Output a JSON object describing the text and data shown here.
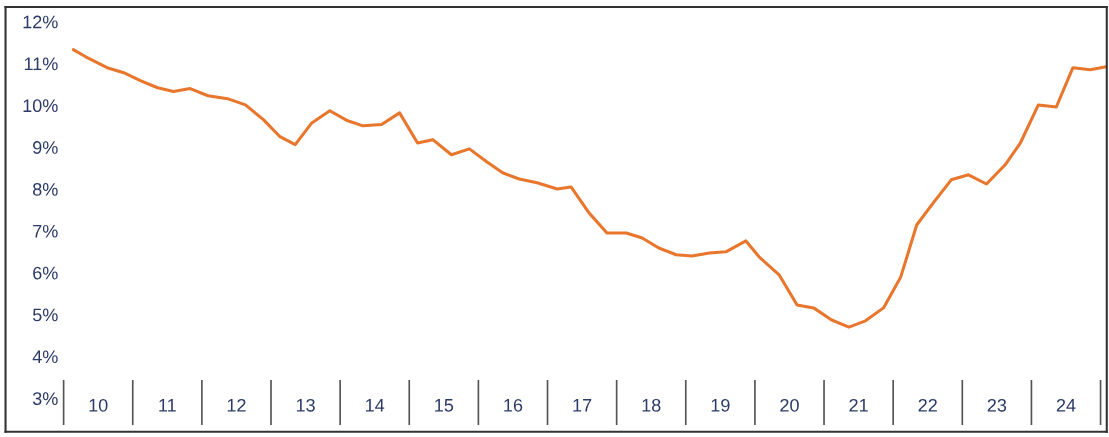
{
  "chart_data": {
    "type": "line",
    "x": [
      9.64,
      9.82,
      10.13,
      10.37,
      10.61,
      10.86,
      11.09,
      11.33,
      11.59,
      11.87,
      12.13,
      12.39,
      12.63,
      12.85,
      13.09,
      13.35,
      13.61,
      13.83,
      14.1,
      14.36,
      14.62,
      14.84,
      15.11,
      15.37,
      15.62,
      15.85,
      16.09,
      16.35,
      16.64,
      16.84,
      17.1,
      17.36,
      17.64,
      17.87,
      18.11,
      18.36,
      18.59,
      18.84,
      19.08,
      19.37,
      19.56,
      19.85,
      20.11,
      20.35,
      20.61,
      20.86,
      21.1,
      21.36,
      21.61,
      21.84,
      22.08,
      22.34,
      22.59,
      22.85,
      23.12,
      23.34,
      23.6,
      23.86,
      24.1,
      24.35,
      24.58
    ],
    "series": [
      {
        "color": "#e8762c",
        "values": [
          11.33,
          11.16,
          10.9,
          10.78,
          10.59,
          10.42,
          10.33,
          10.4,
          10.23,
          10.16,
          10.01,
          9.66,
          9.25,
          9.06,
          9.58,
          9.87,
          9.63,
          9.51,
          9.54,
          9.82,
          9.1,
          9.18,
          8.82,
          8.96,
          8.65,
          8.39,
          8.24,
          8.15,
          8.0,
          8.05,
          7.43,
          6.95,
          6.95,
          6.83,
          6.59,
          6.43,
          6.4,
          6.47,
          6.5,
          6.76,
          6.38,
          5.95,
          5.23,
          5.16,
          4.87,
          4.7,
          4.85,
          5.16,
          5.9,
          7.14,
          7.67,
          8.22,
          8.34,
          8.12,
          8.58,
          9.1,
          10.01,
          9.96,
          10.9,
          10.85,
          10.92
        ]
      }
    ],
    "xlim": [
      8.66,
      24.59
    ],
    "ylim": [
      2.2,
      12.35
    ],
    "yticks": [
      {
        "value": 3,
        "label": "3%"
      },
      {
        "value": 4,
        "label": "4%"
      },
      {
        "value": 5,
        "label": "5%"
      },
      {
        "value": 6,
        "label": "6%"
      },
      {
        "value": 7,
        "label": "7%"
      },
      {
        "value": 8,
        "label": "8%"
      },
      {
        "value": 9,
        "label": "9%"
      },
      {
        "value": 10,
        "label": "10%"
      },
      {
        "value": 11,
        "label": "11%"
      },
      {
        "value": 12,
        "label": "12%"
      }
    ],
    "xticks": [
      10,
      11,
      12,
      13,
      14,
      15,
      16,
      17,
      18,
      19,
      20,
      21,
      22,
      23,
      24
    ],
    "grid": false,
    "legend": false
  }
}
